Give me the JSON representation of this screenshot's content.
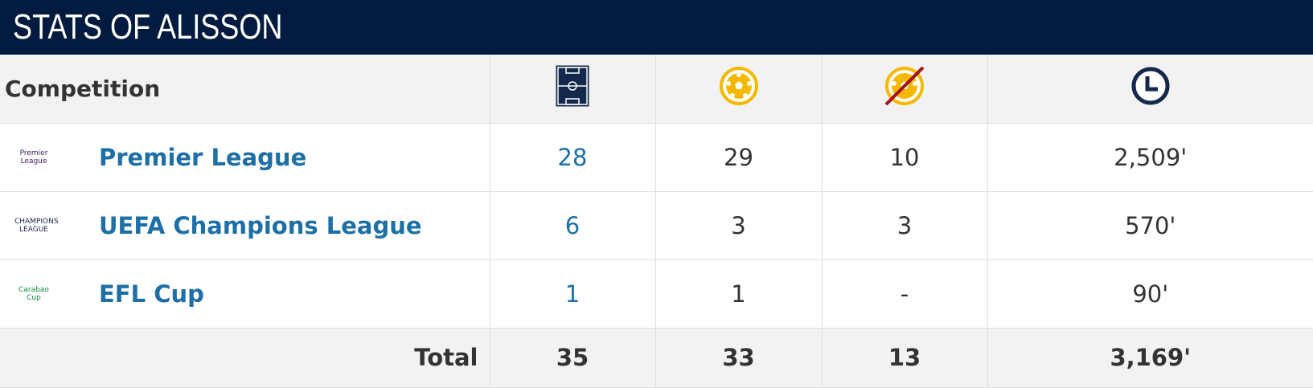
{
  "header": {
    "title": "STATS OF ALISSON"
  },
  "table": {
    "columns": [
      "Competition"
    ],
    "rows": [
      {
        "logo": "Premier League",
        "competition": "Premier League",
        "cells": [
          "28",
          "29",
          "10",
          "2,509'"
        ]
      },
      {
        "logo": "CHAMPIONS LEAGUE",
        "competition": "UEFA Champions League",
        "cells": [
          "6",
          "3",
          "3",
          "570'"
        ]
      },
      {
        "logo": "Carabao Cup",
        "competition": "EFL Cup",
        "cells": [
          "1",
          "1",
          "-",
          "90'"
        ]
      }
    ],
    "total": {
      "label": "Total",
      "cells": [
        "35",
        "33",
        "13",
        "3,169'"
      ]
    }
  }
}
